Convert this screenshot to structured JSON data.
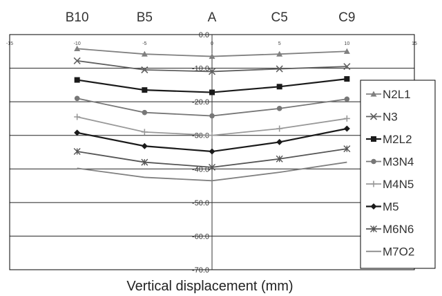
{
  "chart_data": {
    "type": "line",
    "position_labels": [
      "B10",
      "B5",
      "A",
      "C5",
      "C9"
    ],
    "position_label_x": [
      -10,
      -5,
      0,
      5,
      10
    ],
    "x": [
      -10,
      -5,
      0,
      5,
      10
    ],
    "xlim": [
      -15,
      15
    ],
    "xticks": [
      -15,
      -10,
      -5,
      0,
      5,
      10,
      15
    ],
    "xtick_labels": [
      "-15",
      "-10",
      "-5",
      "0",
      "5",
      "10",
      "15"
    ],
    "ylim": [
      -70,
      0
    ],
    "yticks": [
      0,
      -10,
      -20,
      -30,
      -40,
      -50,
      -60,
      -70
    ],
    "ytick_labels": [
      "0.0",
      "-10.0",
      "-20.0",
      "-30.0",
      "-40.0",
      "-50.0",
      "-60.0",
      "-70.0"
    ],
    "xlabel": "Vertical displacement (mm)",
    "grid": "horizontal",
    "legend": "right",
    "series": [
      {
        "name": "N2L1",
        "values": [
          -4.2,
          -5.8,
          -6.5,
          -5.8,
          -5.0
        ],
        "color": "#808080",
        "marker": "triangle"
      },
      {
        "name": "N3",
        "values": [
          -7.8,
          -10.5,
          -11.0,
          -10.2,
          -9.5
        ],
        "color": "#606060",
        "marker": "x"
      },
      {
        "name": "M2L2",
        "values": [
          -13.5,
          -16.5,
          -17.2,
          -15.5,
          -13.2
        ],
        "color": "#1a1a1a",
        "marker": "square"
      },
      {
        "name": "M3N4",
        "values": [
          -19.0,
          -23.2,
          -24.2,
          -22.0,
          -19.2
        ],
        "color": "#777777",
        "marker": "circle"
      },
      {
        "name": "M4N5",
        "values": [
          -24.5,
          -29.0,
          -30.0,
          -28.0,
          -25.0
        ],
        "color": "#999999",
        "marker": "plus"
      },
      {
        "name": "M5",
        "values": [
          -29.2,
          -33.2,
          -34.8,
          -32.0,
          -28.0
        ],
        "color": "#1a1a1a",
        "marker": "diamond"
      },
      {
        "name": "M6N6",
        "values": [
          -34.8,
          -38.0,
          -39.5,
          -37.0,
          -34.0
        ],
        "color": "#555555",
        "marker": "star"
      },
      {
        "name": "M7O2",
        "values": [
          -39.8,
          -42.5,
          -43.5,
          -41.0,
          -38.0
        ],
        "color": "#808080",
        "marker": "none"
      }
    ]
  }
}
